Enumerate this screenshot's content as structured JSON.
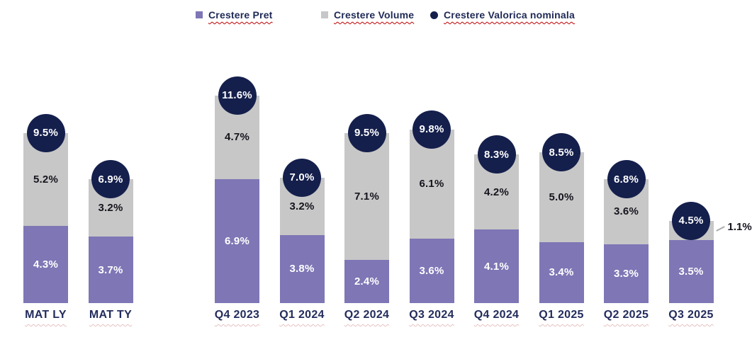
{
  "legend": {
    "items": [
      {
        "label": "Crestere Pret",
        "marker": "square",
        "color": "#7E76B5"
      },
      {
        "label": "Crestere Volume",
        "marker": "square",
        "color": "#C7C7C7"
      },
      {
        "label": "Crestere Valorica nominala",
        "marker": "circle",
        "color": "#141F4C"
      }
    ]
  },
  "chart_data": {
    "type": "bar",
    "stacked": true,
    "title": "",
    "xlabel": "",
    "ylabel": "",
    "unit": "%",
    "grid": false,
    "legend_position": "top",
    "ylim": [
      0,
      12
    ],
    "categories": [
      "MAT LY",
      "MAT TY",
      "Q4 2023",
      "Q1 2024",
      "Q2 2024",
      "Q3 2024",
      "Q4 2024",
      "Q1 2025",
      "Q2 2025",
      "Q3 2025"
    ],
    "series": [
      {
        "name": "Crestere Pret",
        "color": "#7E76B5",
        "values": [
          4.3,
          3.7,
          6.9,
          3.8,
          2.4,
          3.6,
          4.1,
          3.4,
          3.3,
          3.5
        ]
      },
      {
        "name": "Crestere Volume",
        "color": "#C7C7C7",
        "values": [
          5.2,
          3.2,
          4.7,
          3.2,
          7.1,
          6.1,
          4.2,
          5.0,
          3.6,
          1.1
        ]
      }
    ],
    "totals": {
      "name": "Crestere Valorica nominala",
      "color": "#141F4C",
      "values": [
        9.5,
        6.9,
        11.6,
        7.0,
        9.5,
        9.8,
        8.3,
        8.5,
        6.8,
        4.5
      ]
    },
    "outside_labels": [
      {
        "category": "Q3 2025",
        "series": "Crestere Volume",
        "label": "1.1%"
      }
    ]
  }
}
